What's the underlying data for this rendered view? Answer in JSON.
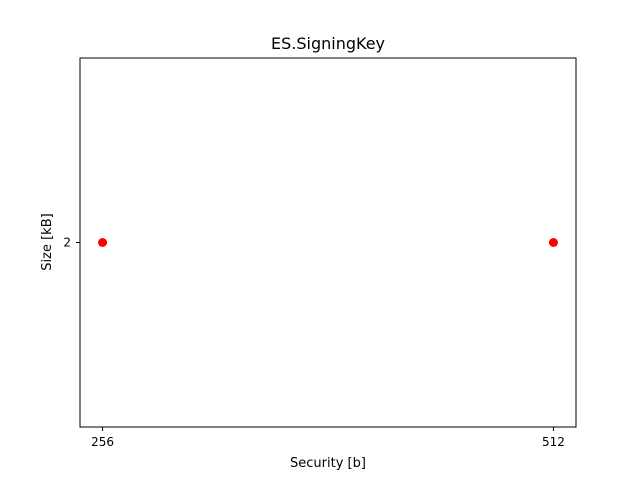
{
  "chart_data": {
    "type": "scatter",
    "title": "ES.SigningKey",
    "xlabel": "Security [b]",
    "ylabel": "Size [kB]",
    "x_ticks": [
      256,
      512
    ],
    "y_ticks": [
      2
    ],
    "xlim": [
      243.2,
      524.8
    ],
    "ylim": [
      1.8,
      2.2
    ],
    "grid": false,
    "series": [
      {
        "color": "#ff0000",
        "points": [
          {
            "x": 256,
            "y": 2
          },
          {
            "x": 512,
            "y": 2
          }
        ]
      }
    ]
  }
}
